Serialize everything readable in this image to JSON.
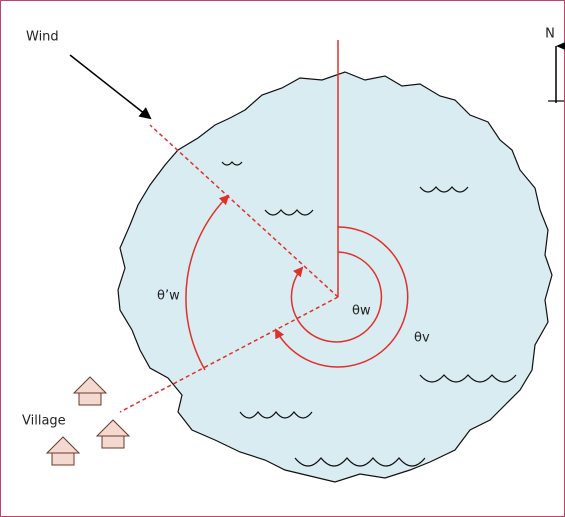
{
  "labels": {
    "wind": "Wind",
    "north": "N",
    "village": "Village",
    "theta_w": "θw",
    "theta_v": "θv",
    "theta_prime_w": "θ’w"
  }
}
